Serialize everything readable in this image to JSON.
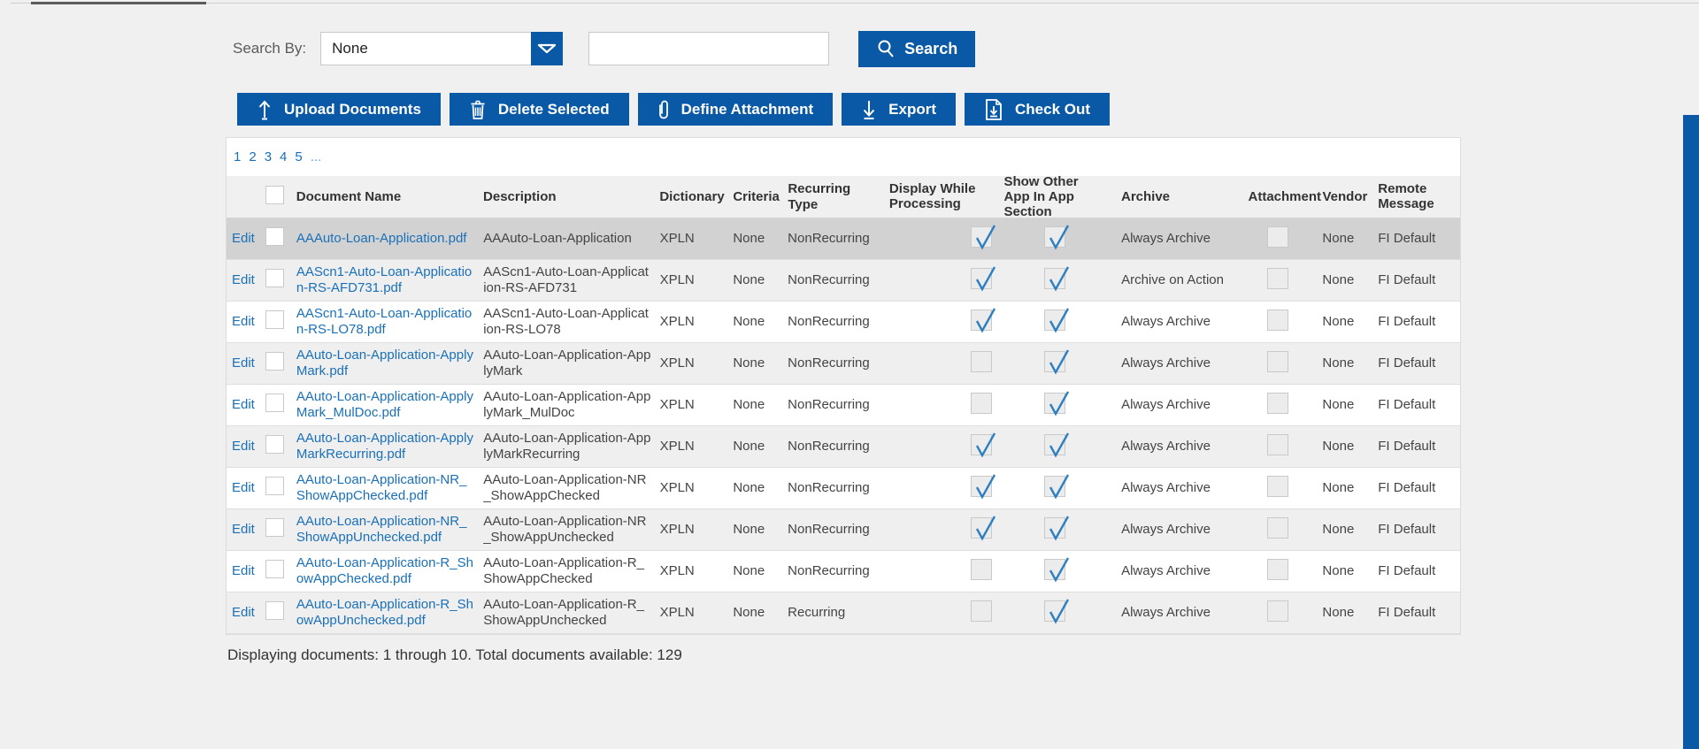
{
  "search": {
    "label": "Search By:",
    "dropdown_value": "None",
    "input_value": "",
    "input_placeholder": "",
    "button_label": "Search"
  },
  "toolbar": {
    "buttons": [
      {
        "icon": "upload-icon",
        "label": "Upload Documents"
      },
      {
        "icon": "trash-icon",
        "label": "Delete Selected"
      },
      {
        "icon": "paperclip-icon",
        "label": "Define Attachment"
      },
      {
        "icon": "download-icon",
        "label": "Export"
      },
      {
        "icon": "checkout-document-icon",
        "label": "Check Out"
      }
    ]
  },
  "pagination": {
    "pages": [
      "1",
      "2",
      "3",
      "4",
      "5",
      "..."
    ]
  },
  "table": {
    "edit_label": "Edit",
    "header_checkbox_checked": false,
    "headers": {
      "document_name": "Document Name",
      "description": "Description",
      "dictionary": "Dictionary",
      "criteria": "Criteria",
      "recurring_type": "Recurring Type",
      "display_while_processing": "Display While Processing",
      "show_other_app": "Show Other App In App Section",
      "archive": "Archive",
      "attachment": "Attachment",
      "vendor": "Vendor",
      "remote_message": "Remote Message"
    },
    "rows": [
      {
        "selected": true,
        "checkbox_checked": false,
        "document_name": "AAAuto-Loan-Application.pdf",
        "description": "AAAuto-Loan-Application",
        "dictionary": "XPLN",
        "criteria": "None",
        "recurring_type": "NonRecurring",
        "display_while_processing": true,
        "show_other_app": true,
        "archive": "Always Archive",
        "attachment": false,
        "vendor": "None",
        "remote_message": "FI Default"
      },
      {
        "selected": false,
        "checkbox_checked": false,
        "document_name": "AAScn1-Auto-Loan-Application-RS-AFD731.pdf",
        "description": "AAScn1-Auto-Loan-Application-RS-AFD731",
        "dictionary": "XPLN",
        "criteria": "None",
        "recurring_type": "NonRecurring",
        "display_while_processing": true,
        "show_other_app": true,
        "archive": "Archive on Action",
        "attachment": false,
        "vendor": "None",
        "remote_message": "FI Default"
      },
      {
        "selected": false,
        "checkbox_checked": false,
        "document_name": "AAScn1-Auto-Loan-Application-RS-LO78.pdf",
        "description": "AAScn1-Auto-Loan-Application-RS-LO78",
        "dictionary": "XPLN",
        "criteria": "None",
        "recurring_type": "NonRecurring",
        "display_while_processing": true,
        "show_other_app": true,
        "archive": "Always Archive",
        "attachment": false,
        "vendor": "None",
        "remote_message": "FI Default"
      },
      {
        "selected": false,
        "checkbox_checked": false,
        "document_name": "AAuto-Loan-Application-ApplyMark.pdf",
        "description": "AAuto-Loan-Application-ApplyMark",
        "dictionary": "XPLN",
        "criteria": "None",
        "recurring_type": "NonRecurring",
        "display_while_processing": false,
        "show_other_app": true,
        "archive": "Always Archive",
        "attachment": false,
        "vendor": "None",
        "remote_message": "FI Default"
      },
      {
        "selected": false,
        "checkbox_checked": false,
        "document_name": "AAuto-Loan-Application-ApplyMark_MulDoc.pdf",
        "description": "AAuto-Loan-Application-ApplyMark_MulDoc",
        "dictionary": "XPLN",
        "criteria": "None",
        "recurring_type": "NonRecurring",
        "display_while_processing": false,
        "show_other_app": true,
        "archive": "Always Archive",
        "attachment": false,
        "vendor": "None",
        "remote_message": "FI Default"
      },
      {
        "selected": false,
        "checkbox_checked": false,
        "document_name": "AAuto-Loan-Application-ApplyMarkRecurring.pdf",
        "description": "AAuto-Loan-Application-ApplyMarkRecurring",
        "dictionary": "XPLN",
        "criteria": "None",
        "recurring_type": "NonRecurring",
        "display_while_processing": true,
        "show_other_app": true,
        "archive": "Always Archive",
        "attachment": false,
        "vendor": "None",
        "remote_message": "FI Default"
      },
      {
        "selected": false,
        "checkbox_checked": false,
        "document_name": "AAuto-Loan-Application-NR_ShowAppChecked.pdf",
        "description": "AAuto-Loan-Application-NR_ShowAppChecked",
        "dictionary": "XPLN",
        "criteria": "None",
        "recurring_type": "NonRecurring",
        "display_while_processing": true,
        "show_other_app": true,
        "archive": "Always Archive",
        "attachment": false,
        "vendor": "None",
        "remote_message": "FI Default"
      },
      {
        "selected": false,
        "checkbox_checked": false,
        "document_name": "AAuto-Loan-Application-NR_ShowAppUnchecked.pdf",
        "description": "AAuto-Loan-Application-NR_ShowAppUnchecked",
        "dictionary": "XPLN",
        "criteria": "None",
        "recurring_type": "NonRecurring",
        "display_while_processing": true,
        "show_other_app": true,
        "archive": "Always Archive",
        "attachment": false,
        "vendor": "None",
        "remote_message": "FI Default"
      },
      {
        "selected": false,
        "checkbox_checked": false,
        "document_name": "AAuto-Loan-Application-R_ShowAppChecked.pdf",
        "description": "AAuto-Loan-Application-R_ShowAppChecked",
        "dictionary": "XPLN",
        "criteria": "None",
        "recurring_type": "NonRecurring",
        "display_while_processing": false,
        "show_other_app": true,
        "archive": "Always Archive",
        "attachment": false,
        "vendor": "None",
        "remote_message": "FI Default"
      },
      {
        "selected": false,
        "checkbox_checked": false,
        "document_name": "AAuto-Loan-Application-R_ShowAppUnchecked.pdf",
        "description": "AAuto-Loan-Application-R_ShowAppUnchecked",
        "dictionary": "XPLN",
        "criteria": "None",
        "recurring_type": "Recurring",
        "display_while_processing": false,
        "show_other_app": true,
        "archive": "Always Archive",
        "attachment": false,
        "vendor": "None",
        "remote_message": "FI Default"
      }
    ]
  },
  "footer": {
    "summary": "Displaying documents: 1 through 10. Total documents available: 129"
  },
  "colors": {
    "accent_blue": "#0a59a6",
    "link_blue": "#1a70b8",
    "selected_row": "#d2d2d2",
    "alt_row": "#efefef",
    "check_blue": "#2e7fc0",
    "page_background": "#f0f0f0"
  }
}
